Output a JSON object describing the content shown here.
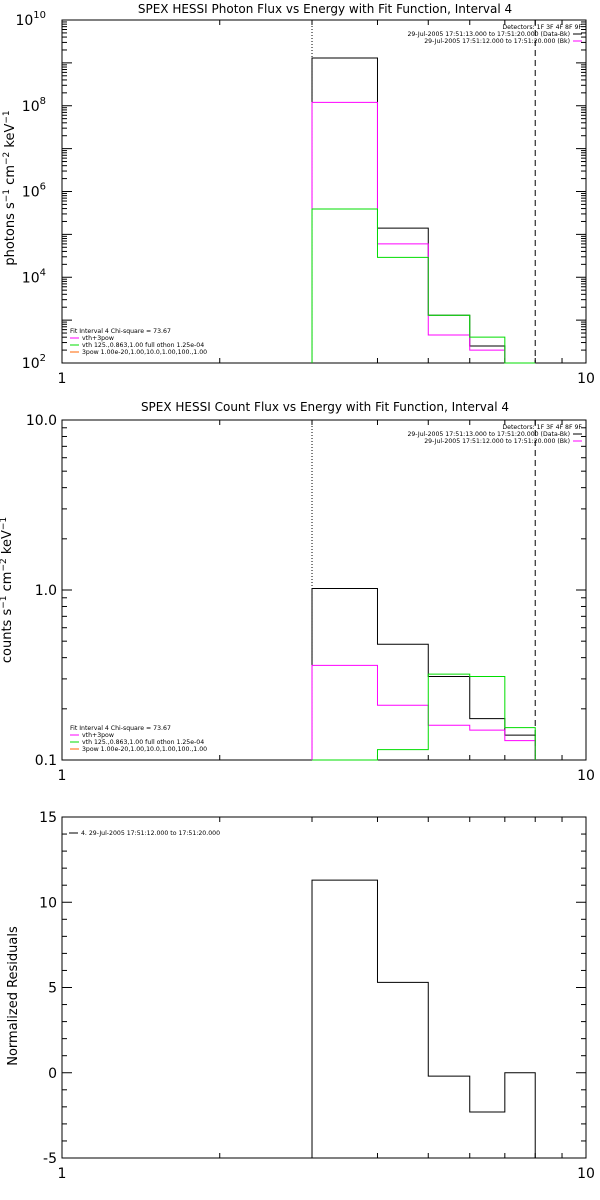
{
  "chart_data": [
    {
      "type": "line",
      "title": "SPEX HESSI Photon Flux vs Energy with Fit Function, Interval 4",
      "xlabel": "",
      "ylabel": "photons s-1 cm-2 keV-1",
      "xscale": "log",
      "yscale": "log",
      "xlim": [
        1,
        10
      ],
      "ylim": [
        100,
        10000000000
      ],
      "xticks": [
        "1",
        "10"
      ],
      "yticks": [
        {
          "value": 100,
          "base": "10",
          "exp": "2"
        },
        {
          "value": 10000,
          "base": "10",
          "exp": "4"
        },
        {
          "value": 1000000,
          "base": "10",
          "exp": "6"
        },
        {
          "value": 100000000,
          "base": "10",
          "exp": "8"
        },
        {
          "value": 10000000000,
          "base": "10",
          "exp": "10"
        }
      ],
      "vlines": [
        {
          "x": 3.0,
          "style": "dotted"
        },
        {
          "x": 8.0,
          "style": "dashed"
        }
      ],
      "edges": [
        3.0,
        4.0,
        5.0,
        6.0,
        7.0,
        8.0
      ],
      "series": [
        {
          "color": "#000000",
          "values": [
            1300000000,
            140000,
            1300,
            250,
            100
          ]
        },
        {
          "color": "#ff00ff",
          "values": [
            120000000,
            60000,
            450,
            200,
            80
          ]
        },
        {
          "color": "#00dd00",
          "values": [
            390000,
            29000,
            1300,
            400,
            100
          ]
        }
      ],
      "legend_top": {
        "detectors": "Detectors: 1F 3F 4F 8F 9F",
        "entries": [
          {
            "text": "29-Jul-2005 17:51:13.000 to 17:51:20.000 (Data-Bk)",
            "color": "#000000"
          },
          {
            "text": "29-Jul-2005 17:51:12.000 to 17:51:20.000 (Bk)",
            "color": "#ff00ff"
          }
        ]
      },
      "legend_bottom": {
        "header": "Fit Interval  4    Chi-square = 73.67",
        "entries": [
          {
            "text": "vth+3pow",
            "color": "#ff00ff"
          },
          {
            "text": "vth 125.,0.863,1.00  full othon 1.25e-04",
            "color": "#00dd00"
          },
          {
            "text": "3pow 1.00e-20,1.00,10.0,1.00,100.,1.00",
            "color": "#ff6600"
          }
        ]
      }
    },
    {
      "type": "line",
      "title": "SPEX HESSI Count Flux vs Energy with Fit Function, Interval 4",
      "xlabel": "",
      "ylabel": "counts s-1 cm-2 keV-1",
      "xscale": "log",
      "yscale": "log",
      "xlim": [
        1,
        10
      ],
      "ylim": [
        0.1,
        10
      ],
      "xticks": [
        "1",
        "10"
      ],
      "yticks": [
        {
          "value": 0.1,
          "label": "0.1"
        },
        {
          "value": 1,
          "label": "1.0"
        },
        {
          "value": 10,
          "label": "10.0"
        }
      ],
      "vlines": [
        {
          "x": 3.0,
          "style": "dotted"
        },
        {
          "x": 8.0,
          "style": "dashed"
        }
      ],
      "edges": [
        3.0,
        4.0,
        5.0,
        6.0,
        7.0,
        8.0
      ],
      "series": [
        {
          "color": "#000000",
          "values": [
            1.02,
            0.48,
            0.31,
            0.175,
            0.14
          ]
        },
        {
          "color": "#ff00ff",
          "values": [
            0.36,
            0.21,
            0.16,
            0.15,
            0.13
          ]
        },
        {
          "color": "#00dd00",
          "values": [
            0.1,
            0.115,
            0.32,
            0.31,
            0.155
          ]
        }
      ],
      "legend_top": {
        "detectors": "Detectors: 1F 3F 4F 8F 9F",
        "entries": [
          {
            "text": "29-Jul-2005 17:51:13.000 to 17:51:20.000 (Data-Bk)",
            "color": "#000000"
          },
          {
            "text": "29-Jul-2005 17:51:12.000 to 17:51:20.000 (Bk)",
            "color": "#ff00ff"
          }
        ]
      },
      "legend_bottom": {
        "header": "Fit Interval  4    Chi-square = 73.67",
        "entries": [
          {
            "text": "vth+3pow",
            "color": "#ff00ff"
          },
          {
            "text": "vth 125.,0.863,1.00  full othon 1.25e-04",
            "color": "#00dd00"
          },
          {
            "text": "3pow 1.00e-20,1.00,10.0,1.00,100.,1.00",
            "color": "#ff6600"
          }
        ]
      }
    },
    {
      "type": "line",
      "title": "",
      "xlabel": "",
      "ylabel": "Normalized Residuals",
      "xscale": "log",
      "yscale": "linear",
      "xlim": [
        1,
        10
      ],
      "ylim": [
        -5,
        15
      ],
      "xticks": [
        "1",
        "10"
      ],
      "yticks": [
        {
          "value": -5,
          "label": "-5"
        },
        {
          "value": 0,
          "label": "0"
        },
        {
          "value": 5,
          "label": "5"
        },
        {
          "value": 10,
          "label": "10"
        },
        {
          "value": 15,
          "label": "15"
        }
      ],
      "vlines": [],
      "edges": [
        3.0,
        4.0,
        5.0,
        6.0,
        7.0,
        8.0
      ],
      "series": [
        {
          "color": "#000000",
          "values": [
            11.3,
            5.3,
            -0.2,
            -2.3,
            0.0
          ]
        }
      ],
      "legend_top": {
        "detectors": "",
        "entries": [
          {
            "text": "4. 29-Jul-2005 17:51:12.000 to 17:51:20.000",
            "color": "#000000"
          }
        ]
      }
    }
  ]
}
